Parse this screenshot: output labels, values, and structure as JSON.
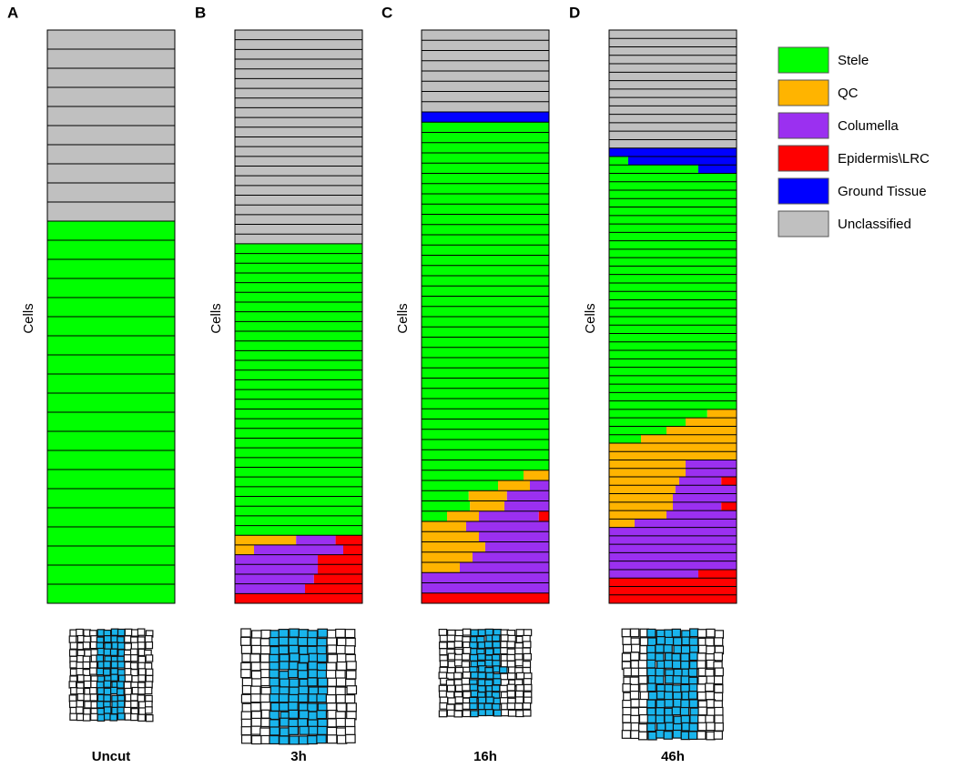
{
  "classes": [
    {
      "name": "Stele",
      "color": "#00ff00"
    },
    {
      "name": "QC",
      "color": "#ffb400"
    },
    {
      "name": "Columella",
      "color": "#9b30f0"
    },
    {
      "name": "Epidermis\\LRC",
      "color": "#ff0000"
    },
    {
      "name": "Ground Tissue",
      "color": "#0000ff"
    },
    {
      "name": "Unclassified",
      "color": "#c0c0c0"
    }
  ],
  "chart_data": [
    {
      "type": "cell-rows",
      "panel": "A",
      "ylabel": "Cells",
      "caption": "Uncut",
      "rows": [
        {
          "n": 10,
          "segments": [
            [
              5,
              1
            ]
          ]
        },
        {
          "n": 20,
          "segments": [
            [
              0,
              1
            ]
          ]
        }
      ]
    },
    {
      "type": "cell-rows",
      "panel": "B",
      "ylabel": "Cells",
      "caption": "3h",
      "rows": [
        {
          "n": 22,
          "segments": [
            [
              5,
              1
            ]
          ]
        },
        {
          "n": 30,
          "segments": [
            [
              0,
              1
            ]
          ]
        },
        {
          "n": 1,
          "segments": [
            [
              1,
              0.48
            ],
            [
              2,
              0.31
            ],
            [
              3,
              0.21
            ]
          ]
        },
        {
          "n": 1,
          "segments": [
            [
              1,
              0.15
            ],
            [
              2,
              0.7
            ],
            [
              3,
              0.15
            ]
          ]
        },
        {
          "n": 2,
          "segments": [
            [
              2,
              0.65
            ],
            [
              3,
              0.35
            ]
          ]
        },
        {
          "n": 1,
          "segments": [
            [
              2,
              0.62
            ],
            [
              3,
              0.38
            ]
          ]
        },
        {
          "n": 1,
          "segments": [
            [
              2,
              0.55
            ],
            [
              3,
              0.45
            ]
          ]
        },
        {
          "n": 1,
          "segments": [
            [
              3,
              1
            ]
          ]
        }
      ]
    },
    {
      "type": "cell-rows",
      "panel": "C",
      "ylabel": "Cells",
      "caption": "16h",
      "rows": [
        {
          "n": 8,
          "segments": [
            [
              5,
              1
            ]
          ]
        },
        {
          "n": 1,
          "segments": [
            [
              4,
              1
            ]
          ]
        },
        {
          "n": 34,
          "segments": [
            [
              0,
              1
            ]
          ]
        },
        {
          "n": 1,
          "segments": [
            [
              0,
              0.8
            ],
            [
              1,
              0.2
            ]
          ]
        },
        {
          "n": 1,
          "segments": [
            [
              0,
              0.6
            ],
            [
              1,
              0.25
            ],
            [
              2,
              0.15
            ]
          ]
        },
        {
          "n": 1,
          "segments": [
            [
              0,
              0.37
            ],
            [
              1,
              0.3
            ],
            [
              2,
              0.33
            ]
          ]
        },
        {
          "n": 1,
          "segments": [
            [
              0,
              0.38
            ],
            [
              1,
              0.27
            ],
            [
              2,
              0.35
            ]
          ]
        },
        {
          "n": 1,
          "segments": [
            [
              0,
              0.2
            ],
            [
              1,
              0.25
            ],
            [
              2,
              0.47
            ],
            [
              3,
              0.08
            ]
          ]
        },
        {
          "n": 1,
          "segments": [
            [
              1,
              0.35
            ],
            [
              2,
              0.65
            ]
          ]
        },
        {
          "n": 1,
          "segments": [
            [
              1,
              0.45
            ],
            [
              2,
              0.55
            ]
          ]
        },
        {
          "n": 1,
          "segments": [
            [
              1,
              0.5
            ],
            [
              2,
              0.5
            ]
          ]
        },
        {
          "n": 1,
          "segments": [
            [
              1,
              0.4
            ],
            [
              2,
              0.6
            ]
          ]
        },
        {
          "n": 1,
          "segments": [
            [
              1,
              0.3
            ],
            [
              2,
              0.7
            ]
          ]
        },
        {
          "n": 2,
          "segments": [
            [
              2,
              1
            ]
          ]
        },
        {
          "n": 1,
          "segments": [
            [
              3,
              1
            ]
          ]
        }
      ]
    },
    {
      "type": "cell-rows",
      "panel": "D",
      "ylabel": "Cells",
      "caption": "46h",
      "rows": [
        {
          "n": 14,
          "segments": [
            [
              5,
              1
            ]
          ]
        },
        {
          "n": 1,
          "segments": [
            [
              4,
              1
            ]
          ]
        },
        {
          "n": 1,
          "segments": [
            [
              0,
              0.15
            ],
            [
              4,
              0.85
            ]
          ]
        },
        {
          "n": 1,
          "segments": [
            [
              0,
              0.7
            ],
            [
              4,
              0.3
            ]
          ]
        },
        {
          "n": 28,
          "segments": [
            [
              0,
              1
            ]
          ]
        },
        {
          "n": 1,
          "segments": [
            [
              0,
              0.77
            ],
            [
              1,
              0.23
            ]
          ]
        },
        {
          "n": 1,
          "segments": [
            [
              0,
              0.6
            ],
            [
              1,
              0.4
            ]
          ]
        },
        {
          "n": 1,
          "segments": [
            [
              0,
              0.45
            ],
            [
              1,
              0.55
            ]
          ]
        },
        {
          "n": 1,
          "segments": [
            [
              0,
              0.25
            ],
            [
              1,
              0.75
            ]
          ]
        },
        {
          "n": 2,
          "segments": [
            [
              1,
              1
            ]
          ]
        },
        {
          "n": 2,
          "segments": [
            [
              1,
              0.6
            ],
            [
              2,
              0.4
            ]
          ]
        },
        {
          "n": 1,
          "segments": [
            [
              1,
              0.55
            ],
            [
              2,
              0.33
            ],
            [
              3,
              0.12
            ]
          ]
        },
        {
          "n": 1,
          "segments": [
            [
              1,
              0.52
            ],
            [
              2,
              0.48
            ]
          ]
        },
        {
          "n": 1,
          "segments": [
            [
              1,
              0.5
            ],
            [
              2,
              0.5
            ]
          ]
        },
        {
          "n": 1,
          "segments": [
            [
              1,
              0.5
            ],
            [
              2,
              0.38
            ],
            [
              3,
              0.12
            ]
          ]
        },
        {
          "n": 1,
          "segments": [
            [
              1,
              0.45
            ],
            [
              2,
              0.55
            ]
          ]
        },
        {
          "n": 1,
          "segments": [
            [
              1,
              0.2
            ],
            [
              2,
              0.8
            ]
          ]
        },
        {
          "n": 5,
          "segments": [
            [
              2,
              1
            ]
          ]
        },
        {
          "n": 1,
          "segments": [
            [
              2,
              0.7
            ],
            [
              3,
              0.3
            ]
          ]
        },
        {
          "n": 3,
          "segments": [
            [
              3,
              1
            ]
          ]
        }
      ]
    }
  ]
}
